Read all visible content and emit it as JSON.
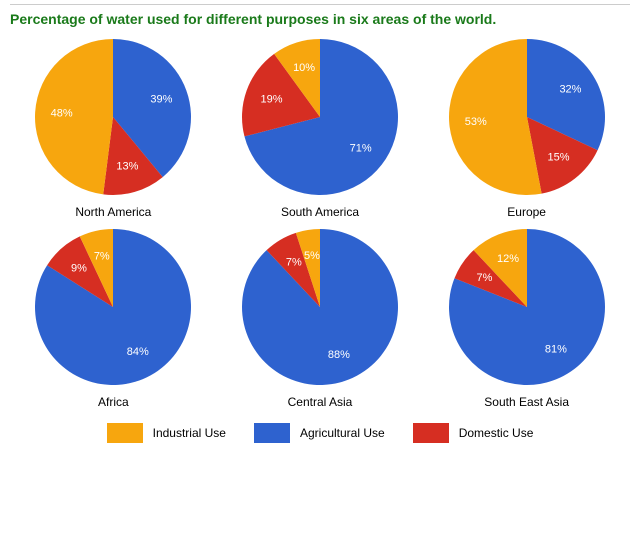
{
  "title": {
    "text": "Percentage of water used for different purposes in six areas of the world.",
    "color": "#1a7a1a",
    "fontsize": 14
  },
  "colors": {
    "industrial": "#f7a60e",
    "agricultural": "#2e62cf",
    "domestic": "#d62e22",
    "label_text": "#ffffff",
    "region_text": "#000000",
    "background": "#ffffff",
    "rule": "#cccccc"
  },
  "pie": {
    "radius": 78,
    "label_radius_ratio": 0.66,
    "label_fontsize": 11,
    "start_angle_deg": -90
  },
  "legend": {
    "items": [
      {
        "key": "industrial",
        "label": "Industrial Use"
      },
      {
        "key": "agricultural",
        "label": "Agricultural Use"
      },
      {
        "key": "domestic",
        "label": "Domestic Use"
      }
    ],
    "swatch_w": 36,
    "swatch_h": 20,
    "fontsize": 12
  },
  "regions": [
    {
      "name": "North America",
      "slices": [
        {
          "key": "agricultural",
          "value": 39,
          "label": "39%"
        },
        {
          "key": "domestic",
          "value": 13,
          "label": "13%"
        },
        {
          "key": "industrial",
          "value": 48,
          "label": "48%"
        }
      ]
    },
    {
      "name": "South America",
      "slices": [
        {
          "key": "agricultural",
          "value": 71,
          "label": "71%"
        },
        {
          "key": "domestic",
          "value": 19,
          "label": "19%"
        },
        {
          "key": "industrial",
          "value": 10,
          "label": "10%"
        }
      ]
    },
    {
      "name": "Europe",
      "slices": [
        {
          "key": "agricultural",
          "value": 32,
          "label": "32%"
        },
        {
          "key": "domestic",
          "value": 15,
          "label": "15%"
        },
        {
          "key": "industrial",
          "value": 53,
          "label": "53%"
        }
      ]
    },
    {
      "name": "Africa",
      "slices": [
        {
          "key": "agricultural",
          "value": 84,
          "label": "84%"
        },
        {
          "key": "domestic",
          "value": 9,
          "label": "9%"
        },
        {
          "key": "industrial",
          "value": 7,
          "label": "7%"
        }
      ]
    },
    {
      "name": "Central Asia",
      "slices": [
        {
          "key": "agricultural",
          "value": 88,
          "label": "88%"
        },
        {
          "key": "domestic",
          "value": 7,
          "label": "7%"
        },
        {
          "key": "industrial",
          "value": 5,
          "label": "5%"
        }
      ]
    },
    {
      "name": "South East Asia",
      "slices": [
        {
          "key": "agricultural",
          "value": 81,
          "label": "81%"
        },
        {
          "key": "domestic",
          "value": 7,
          "label": "7%"
        },
        {
          "key": "industrial",
          "value": 12,
          "label": "12%"
        }
      ]
    }
  ]
}
